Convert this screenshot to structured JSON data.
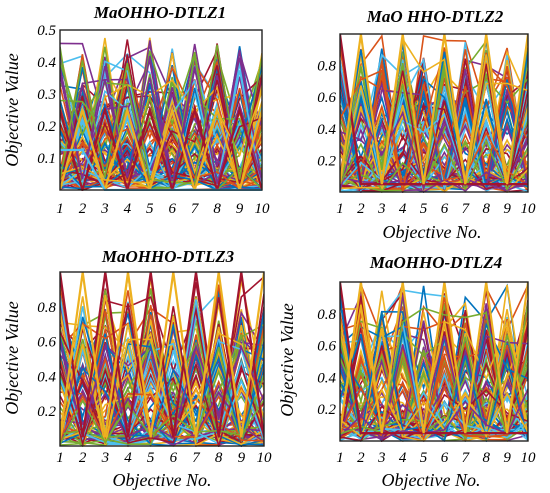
{
  "chart_data": [
    {
      "type": "line",
      "title": "MaOHHO-DTLZ1",
      "xlabel": "",
      "ylabel": "Objective Value",
      "xticks": [
        "1",
        "2",
        "3",
        "4",
        "5",
        "6",
        "7",
        "8",
        "9",
        "10"
      ],
      "yticks": [
        "0.1",
        "0.2",
        "0.3",
        "0.4",
        "0.5"
      ],
      "ylim": [
        0,
        0.5
      ],
      "grid": false,
      "series_description_values": [
        [
          0.5,
          0.0,
          0.5,
          0.0,
          0.5,
          0.0,
          0.5,
          0.0,
          0.5,
          0.0
        ],
        [
          0.0,
          0.5,
          0.0,
          0.5,
          0.0,
          0.5,
          0.0,
          0.5,
          0.0,
          0.5
        ],
        [
          0.25,
          0.25,
          0.0,
          0.0,
          0.0,
          0.0,
          0.0,
          0.0,
          0.0,
          0.0
        ]
      ]
    },
    {
      "type": "line",
      "title": "MaO HHO-DTLZ2",
      "xlabel": "Objective No.",
      "ylabel": "",
      "xticks": [
        "1",
        "2",
        "3",
        "4",
        "5",
        "6",
        "7",
        "8",
        "9",
        "10"
      ],
      "yticks": [
        "0.2",
        "0.4",
        "0.6",
        "0.8"
      ],
      "ylim": [
        0,
        1.0
      ],
      "grid": false,
      "series_description_values": [
        [
          1.0,
          0.05,
          0.05,
          0.05,
          0.05,
          0.05,
          0.05,
          0.05,
          0.05,
          0.05
        ],
        [
          0.05,
          1.0,
          0.05,
          1.0,
          0.05,
          1.0,
          0.05,
          1.0,
          0.05,
          1.0
        ]
      ]
    },
    {
      "type": "line",
      "title": "MaOHHO-DTLZ3",
      "xlabel": "Objective No.",
      "ylabel": "Objective Value",
      "xticks": [
        "1",
        "2",
        "3",
        "4",
        "5",
        "6",
        "7",
        "8",
        "9",
        "10"
      ],
      "yticks": [
        "0.2",
        "0.4",
        "0.6",
        "0.8"
      ],
      "ylim": [
        0,
        1.0
      ],
      "grid": false,
      "series_description_values": [
        [
          1.0,
          0.05,
          1.0,
          0.05,
          1.0,
          0.05,
          1.0,
          0.05,
          1.0,
          0.05
        ],
        [
          0.05,
          1.0,
          0.05,
          1.0,
          0.05,
          1.0,
          0.05,
          1.0,
          0.05,
          1.0
        ]
      ]
    },
    {
      "type": "line",
      "title": "MaOHHO-DTLZ4",
      "xlabel": "Objective No.",
      "ylabel": "Objective Value",
      "xticks": [
        "1",
        "2",
        "3",
        "4",
        "5",
        "6",
        "7",
        "8",
        "9",
        "10"
      ],
      "yticks": [
        "0.2",
        "0.4",
        "0.6",
        "0.8"
      ],
      "ylim": [
        0,
        1.0
      ],
      "grid": false,
      "series_description_values": [
        [
          1.0,
          0.05,
          0.05,
          0.05,
          0.05,
          0.05,
          0.05,
          0.05,
          0.05,
          0.05
        ],
        [
          0.05,
          1.0,
          0.05,
          1.0,
          0.05,
          1.0,
          0.05,
          1.0,
          0.05,
          1.0
        ]
      ]
    }
  ],
  "colors": [
    "#0072bd",
    "#d95319",
    "#edb120",
    "#7e2f8e",
    "#77ac30",
    "#4dbeee",
    "#a2142f"
  ]
}
